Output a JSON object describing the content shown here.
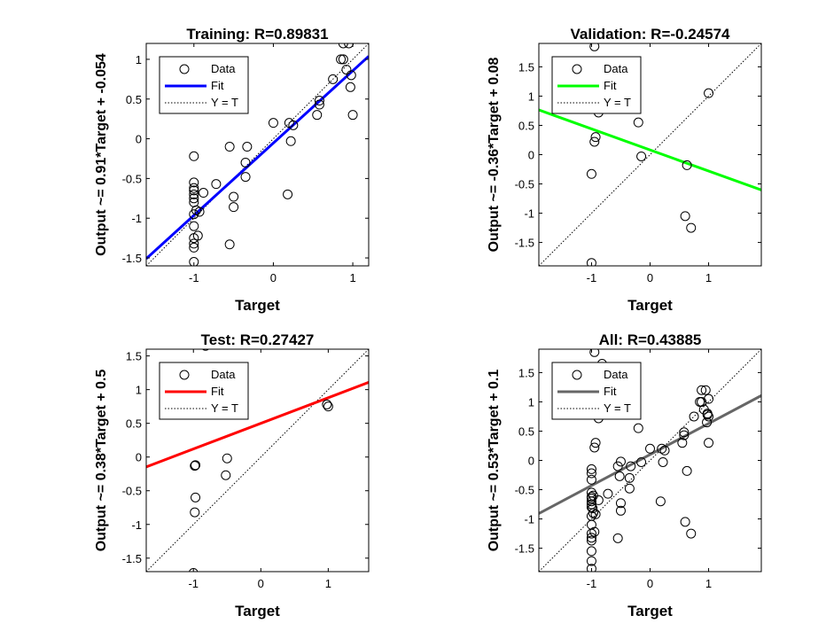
{
  "chart_data": [
    {
      "type": "scatter",
      "title": "Training: R=0.89831",
      "xlabel": "Target",
      "ylabel": "Output ~= 0.91*Target + -0.054",
      "xlim": [
        -1.6,
        1.2
      ],
      "ylim": [
        -1.6,
        1.2
      ],
      "xticks": [
        -1,
        0,
        1
      ],
      "xtick_labels": [
        "-1",
        "0",
        "1"
      ],
      "yticks": [
        -1.5,
        -1,
        -0.5,
        0,
        0.5,
        1
      ],
      "ytick_labels": [
        "-1.5",
        "-1",
        "-0.5",
        "0",
        "0.5",
        "1"
      ],
      "fit": {
        "slope": 0.91,
        "intercept": -0.054,
        "color": "#0000ff"
      },
      "legend": {
        "placement": "top-left",
        "entries": [
          "Data",
          "Fit",
          "Y = T"
        ]
      },
      "series": [
        {
          "name": "Data",
          "points": [
            [
              -1,
              -0.22
            ],
            [
              -1,
              -0.55
            ],
            [
              -1,
              -0.62
            ],
            [
              -1,
              -0.65
            ],
            [
              -1,
              -0.7
            ],
            [
              -1,
              -0.75
            ],
            [
              -1,
              -0.8
            ],
            [
              -1,
              -0.95
            ],
            [
              -1,
              -1.1
            ],
            [
              -1,
              -1.25
            ],
            [
              -1,
              -1.32
            ],
            [
              -1,
              -1.37
            ],
            [
              -1,
              -1.55
            ],
            [
              -0.97,
              -0.9
            ],
            [
              -0.95,
              -1.22
            ],
            [
              -0.93,
              -0.92
            ],
            [
              -0.88,
              -0.68
            ],
            [
              -0.72,
              -0.57
            ],
            [
              -0.55,
              -0.1
            ],
            [
              -0.55,
              -1.33
            ],
            [
              -0.5,
              -0.73
            ],
            [
              -0.5,
              -0.86
            ],
            [
              -0.35,
              -0.3
            ],
            [
              -0.35,
              -0.48
            ],
            [
              -0.33,
              -0.1
            ],
            [
              0,
              0.2
            ],
            [
              0.18,
              -0.7
            ],
            [
              0.2,
              0.2
            ],
            [
              0.22,
              -0.03
            ],
            [
              0.25,
              0.17
            ],
            [
              0.55,
              0.3
            ],
            [
              0.58,
              0.43
            ],
            [
              0.58,
              0.48
            ],
            [
              0.75,
              0.75
            ],
            [
              0.85,
              1.0
            ],
            [
              0.88,
              1.0
            ],
            [
              0.88,
              1.2
            ],
            [
              0.92,
              0.87
            ],
            [
              0.95,
              1.2
            ],
            [
              0.97,
              0.65
            ],
            [
              0.98,
              0.8
            ],
            [
              1.0,
              0.3
            ]
          ]
        }
      ]
    },
    {
      "type": "scatter",
      "title": "Validation: R=-0.24574",
      "xlabel": "Target",
      "ylabel": "Output ~= -0.36*Target + 0.08",
      "xlim": [
        -1.9,
        1.9
      ],
      "ylim": [
        -1.9,
        1.9
      ],
      "xticks": [
        -1,
        0,
        1
      ],
      "xtick_labels": [
        "-1",
        "0",
        "1"
      ],
      "yticks": [
        -1.5,
        -1,
        -0.5,
        0,
        0.5,
        1,
        1.5
      ],
      "ytick_labels": [
        "-1.5",
        "-1",
        "-0.5",
        "0",
        "0.5",
        "1",
        "1.5"
      ],
      "fit": {
        "slope": -0.36,
        "intercept": 0.08,
        "color": "#00ff00"
      },
      "legend": {
        "placement": "top-left",
        "entries": [
          "Data",
          "Fit",
          "Y = T"
        ]
      },
      "series": [
        {
          "name": "Data",
          "points": [
            [
              -0.95,
              1.85
            ],
            [
              -1,
              -1.85
            ],
            [
              -0.88,
              0.72
            ],
            [
              -0.93,
              0.3
            ],
            [
              -0.95,
              0.22
            ],
            [
              -1.0,
              -0.33
            ],
            [
              -0.2,
              0.55
            ],
            [
              -0.15,
              -0.03
            ],
            [
              0.6,
              -1.05
            ],
            [
              0.63,
              -0.18
            ],
            [
              0.7,
              -1.25
            ],
            [
              1.0,
              1.05
            ]
          ]
        }
      ]
    },
    {
      "type": "scatter",
      "title": "Test: R=0.27427",
      "xlabel": "Target",
      "ylabel": "Output ~= 0.38*Target + 0.5",
      "xlim": [
        -1.7,
        1.6
      ],
      "ylim": [
        -1.7,
        1.6
      ],
      "xticks": [
        -1,
        0,
        1
      ],
      "xtick_labels": [
        "-1",
        "0",
        "1"
      ],
      "yticks": [
        -1.5,
        -1,
        -0.5,
        0,
        0.5,
        1,
        1.5
      ],
      "ytick_labels": [
        "-1.5",
        "-1",
        "-0.5",
        "0",
        "0.5",
        "1",
        "1.5"
      ],
      "fit": {
        "slope": 0.38,
        "intercept": 0.5,
        "color": "#ff0000"
      },
      "legend": {
        "placement": "top-left",
        "entries": [
          "Data",
          "Fit",
          "Y = T"
        ]
      },
      "series": [
        {
          "name": "Data",
          "points": [
            [
              -0.82,
              1.65
            ],
            [
              -1.0,
              -1.72
            ],
            [
              -0.97,
              -0.12
            ],
            [
              -0.98,
              -0.13
            ],
            [
              -0.97,
              -0.6
            ],
            [
              -0.98,
              -0.82
            ],
            [
              -0.5,
              -0.02
            ],
            [
              -0.52,
              -0.27
            ],
            [
              0.98,
              0.78
            ],
            [
              1.0,
              0.75
            ]
          ]
        }
      ]
    },
    {
      "type": "scatter",
      "title": "All: R=0.43885",
      "xlabel": "Target",
      "ylabel": "Output ~= 0.53*Target + 0.1",
      "xlim": [
        -1.9,
        1.9
      ],
      "ylim": [
        -1.9,
        1.9
      ],
      "xticks": [
        -1,
        0,
        1
      ],
      "xtick_labels": [
        "-1",
        "0",
        "1"
      ],
      "yticks": [
        -1.5,
        -1,
        -0.5,
        0,
        0.5,
        1,
        1.5
      ],
      "ytick_labels": [
        "-1.5",
        "-1",
        "-0.5",
        "0",
        "0.5",
        "1",
        "1.5"
      ],
      "fit": {
        "slope": 0.53,
        "intercept": 0.1,
        "color": "#666666"
      },
      "legend": {
        "placement": "top-left",
        "entries": [
          "Data",
          "Fit",
          "Y = T"
        ]
      },
      "series": [
        {
          "name": "Data",
          "points": [
            [
              -0.95,
              1.85
            ],
            [
              -0.82,
              1.65
            ],
            [
              -0.88,
              0.72
            ],
            [
              -0.93,
              0.3
            ],
            [
              -0.95,
              0.22
            ],
            [
              -1,
              -0.15
            ],
            [
              -1,
              -0.22
            ],
            [
              -1,
              -0.55
            ],
            [
              -1,
              -0.62
            ],
            [
              -1,
              -0.65
            ],
            [
              -1,
              -0.7
            ],
            [
              -1,
              -0.75
            ],
            [
              -1,
              -0.8
            ],
            [
              -1,
              -0.95
            ],
            [
              -1,
              -1.1
            ],
            [
              -1,
              -1.25
            ],
            [
              -1,
              -1.32
            ],
            [
              -1,
              -1.37
            ],
            [
              -1,
              -1.55
            ],
            [
              -1,
              -1.72
            ],
            [
              -1,
              -1.85
            ],
            [
              -0.97,
              -0.9
            ],
            [
              -0.95,
              -1.22
            ],
            [
              -0.93,
              -0.92
            ],
            [
              -0.97,
              -0.6
            ],
            [
              -0.98,
              -0.82
            ],
            [
              -1.0,
              -0.33
            ],
            [
              -0.88,
              -0.68
            ],
            [
              -0.72,
              -0.57
            ],
            [
              -0.55,
              -0.1
            ],
            [
              -0.55,
              -1.33
            ],
            [
              -0.5,
              -0.73
            ],
            [
              -0.5,
              -0.86
            ],
            [
              -0.5,
              -0.02
            ],
            [
              -0.52,
              -0.27
            ],
            [
              -0.35,
              -0.3
            ],
            [
              -0.35,
              -0.48
            ],
            [
              -0.33,
              -0.1
            ],
            [
              -0.2,
              0.55
            ],
            [
              -0.15,
              -0.03
            ],
            [
              0,
              0.2
            ],
            [
              0.18,
              -0.7
            ],
            [
              0.2,
              0.2
            ],
            [
              0.22,
              -0.03
            ],
            [
              0.25,
              0.17
            ],
            [
              0.55,
              0.3
            ],
            [
              0.58,
              0.43
            ],
            [
              0.58,
              0.48
            ],
            [
              0.6,
              -1.05
            ],
            [
              0.63,
              -0.18
            ],
            [
              0.7,
              -1.25
            ],
            [
              0.75,
              0.75
            ],
            [
              0.85,
              1.0
            ],
            [
              0.88,
              1.0
            ],
            [
              0.88,
              1.2
            ],
            [
              0.92,
              0.87
            ],
            [
              0.95,
              1.2
            ],
            [
              0.97,
              0.65
            ],
            [
              0.98,
              0.8
            ],
            [
              0.98,
              0.78
            ],
            [
              1.0,
              0.75
            ],
            [
              1.0,
              0.3
            ],
            [
              1.0,
              1.05
            ]
          ]
        }
      ]
    }
  ]
}
